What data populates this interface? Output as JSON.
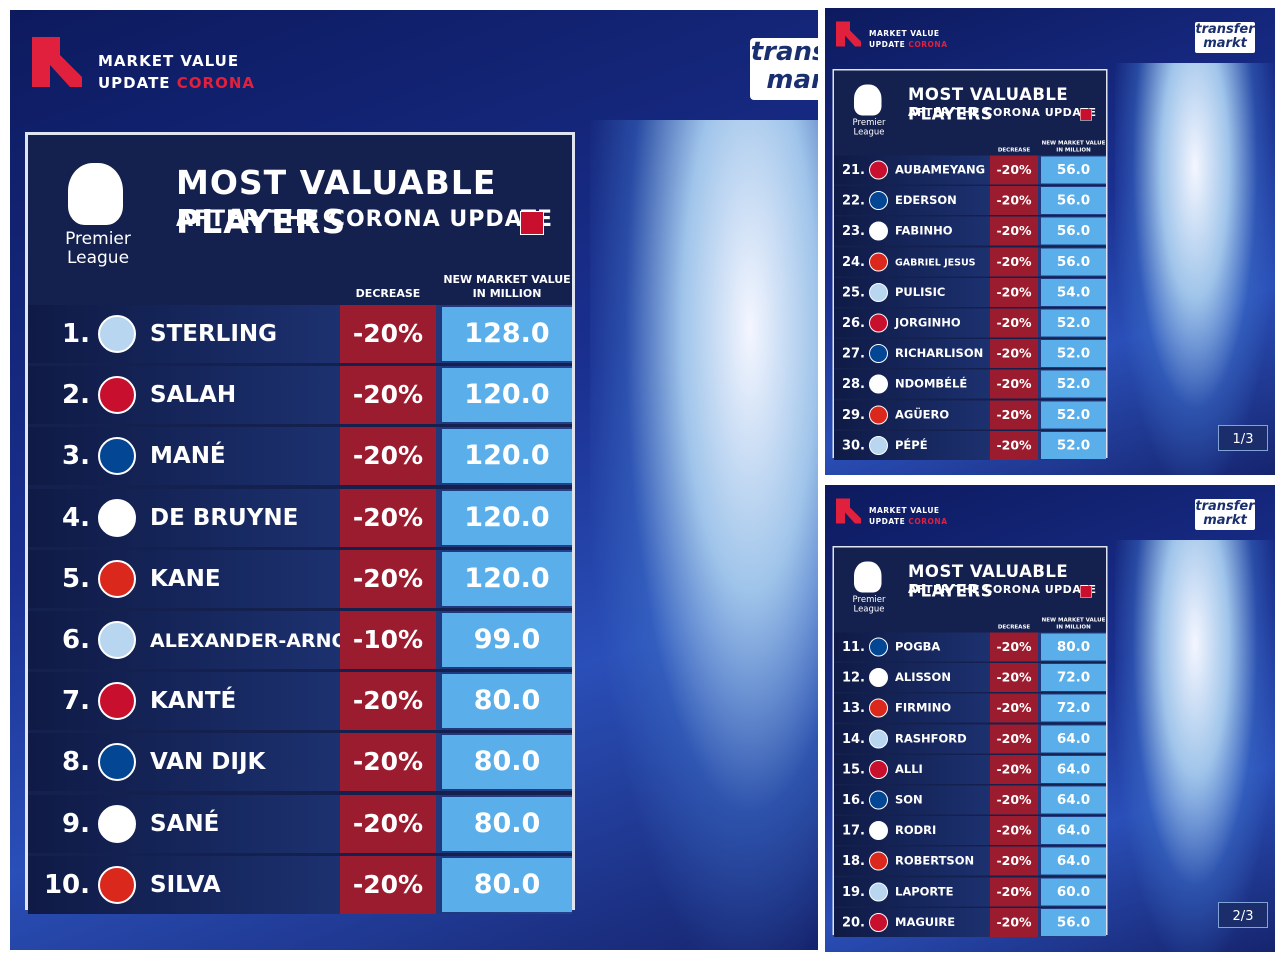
{
  "header": {
    "line1": "MARKET VALUE",
    "line2": "UPDATE",
    "highlight": "CORONA",
    "brand_top": "transfer",
    "brand_bottom": "markt"
  },
  "logo": {
    "line1": "Premier",
    "line2": "League"
  },
  "title": "MOST VALUABLE PLAYERS",
  "subtitle": "AFTER THE CORONA UPDATE",
  "columns": {
    "decrease": "DECREASE",
    "value": "NEW MARKET VALUE IN MILLION"
  },
  "panels": [
    {
      "rows": [
        [
          "1.",
          "STERLING",
          "-20%",
          "128.0"
        ],
        [
          "2.",
          "SALAH",
          "-20%",
          "120.0"
        ],
        [
          "3.",
          "MANÉ",
          "-20%",
          "120.0"
        ],
        [
          "4.",
          "DE BRUYNE",
          "-20%",
          "120.0"
        ],
        [
          "5.",
          "KANE",
          "-20%",
          "120.0"
        ],
        [
          "6.",
          "ALEXANDER-ARNOLD",
          "-10%",
          "99.0"
        ],
        [
          "7.",
          "KANTÉ",
          "-20%",
          "80.0"
        ],
        [
          "8.",
          "VAN DIJK",
          "-20%",
          "80.0"
        ],
        [
          "9.",
          "SANÉ",
          "-20%",
          "80.0"
        ],
        [
          "10.",
          "SILVA",
          "-20%",
          "80.0"
        ]
      ]
    },
    {
      "rows": [
        [
          "21.",
          "AUBAMEYANG",
          "-20%",
          "56.0"
        ],
        [
          "22.",
          "EDERSON",
          "-20%",
          "56.0"
        ],
        [
          "23.",
          "FABINHO",
          "-20%",
          "56.0"
        ],
        [
          "24.",
          "GABRIEL JESUS",
          "-20%",
          "56.0"
        ],
        [
          "25.",
          "PULISIC",
          "-20%",
          "54.0"
        ],
        [
          "26.",
          "JORGINHO",
          "-20%",
          "52.0"
        ],
        [
          "27.",
          "RICHARLISON",
          "-20%",
          "52.0"
        ],
        [
          "28.",
          "NDOMBÉLÉ",
          "-20%",
          "52.0"
        ],
        [
          "29.",
          "AGÜERO",
          "-20%",
          "52.0"
        ],
        [
          "30.",
          "PÉPÉ",
          "-20%",
          "52.0"
        ]
      ],
      "page": "1/3"
    },
    {
      "rows": [
        [
          "11.",
          "POGBA",
          "-20%",
          "80.0"
        ],
        [
          "12.",
          "ALISSON",
          "-20%",
          "72.0"
        ],
        [
          "13.",
          "FIRMINO",
          "-20%",
          "72.0"
        ],
        [
          "14.",
          "RASHFORD",
          "-20%",
          "64.0"
        ],
        [
          "15.",
          "ALLI",
          "-20%",
          "64.0"
        ],
        [
          "16.",
          "SON",
          "-20%",
          "64.0"
        ],
        [
          "17.",
          "RODRI",
          "-20%",
          "64.0"
        ],
        [
          "18.",
          "ROBERTSON",
          "-20%",
          "64.0"
        ],
        [
          "19.",
          "LAPORTE",
          "-20%",
          "60.0"
        ],
        [
          "20.",
          "MAGUIRE",
          "-20%",
          "56.0"
        ]
      ],
      "page": "2/3"
    }
  ]
}
